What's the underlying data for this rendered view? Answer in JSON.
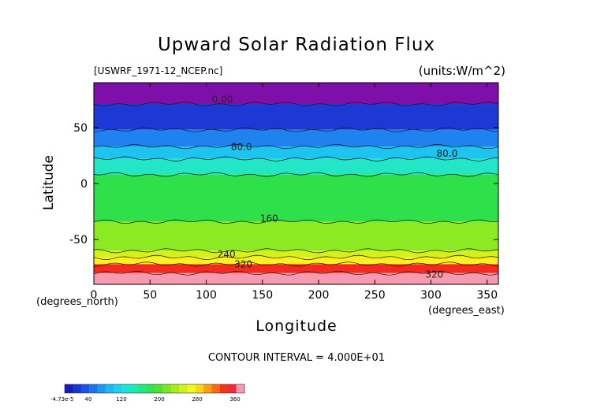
{
  "chart_data": {
    "type": "heatmap",
    "title": "Upward Solar Radiation Flux",
    "source_label": "[USWRF_1971-12_NCEP.nc]",
    "units_label": "(units:W/m^2)",
    "xlabel": "Longitude",
    "ylabel": "Latitude",
    "x_unit_label": "(degrees_east)",
    "y_unit_label": "(degrees_north)",
    "xlim": [
      0,
      360
    ],
    "ylim": [
      -90,
      90
    ],
    "x_ticks": [
      0,
      50,
      100,
      150,
      200,
      250,
      300,
      350
    ],
    "y_ticks": [
      -50,
      0,
      50
    ],
    "contour_interval_text": "CONTOUR INTERVAL = 4.000E+01",
    "contour_labels": [
      {
        "text": "0.00",
        "lon": 105,
        "lat": 72
      },
      {
        "text": "80.0",
        "lon": 122,
        "lat": 30
      },
      {
        "text": "80.0",
        "lon": 305,
        "lat": 24
      },
      {
        "text": "160",
        "lon": 148,
        "lat": -34
      },
      {
        "text": "240",
        "lon": 110,
        "lat": -66
      },
      {
        "text": "320",
        "lon": 125,
        "lat": -75
      },
      {
        "text": "320",
        "lon": 295,
        "lat": -84
      }
    ],
    "bands": [
      {
        "lat_top": 90,
        "lat_bottom": 71,
        "value": 20,
        "color": "#7e0fa8"
      },
      {
        "lat_top": 71,
        "lat_bottom": 48,
        "value": 45,
        "color": "#1e38d6"
      },
      {
        "lat_top": 48,
        "lat_bottom": 33,
        "value": 70,
        "color": "#1f82ee"
      },
      {
        "lat_top": 33,
        "lat_bottom": 22,
        "value": 95,
        "color": "#1ec4f0"
      },
      {
        "lat_top": 22,
        "lat_bottom": 8,
        "value": 120,
        "color": "#22e6c6"
      },
      {
        "lat_top": 8,
        "lat_bottom": -34,
        "value": 170,
        "color": "#2ee04a"
      },
      {
        "lat_top": -34,
        "lat_bottom": -60,
        "value": 205,
        "color": "#8cea22"
      },
      {
        "lat_top": -60,
        "lat_bottom": -66,
        "value": 250,
        "color": "#d8f01a"
      },
      {
        "lat_top": -66,
        "lat_bottom": -72,
        "value": 290,
        "color": "#fff020"
      },
      {
        "lat_top": -72,
        "lat_bottom": -80,
        "value": 325,
        "color": "#f52a1e"
      },
      {
        "lat_top": -80,
        "lat_bottom": -90,
        "value": 365,
        "color": "#f79ab0"
      }
    ],
    "colorbar": {
      "tick_labels": [
        "-4.73e-5",
        "40",
        "120",
        "200",
        "280",
        "360"
      ],
      "tick_values": [
        0,
        40,
        120,
        200,
        280,
        360
      ],
      "range": [
        0,
        380
      ],
      "colors": [
        "#1a1ab4",
        "#1638d0",
        "#1854e0",
        "#1a74ea",
        "#1a98f2",
        "#1ab8f4",
        "#1ad2ee",
        "#18e6d4",
        "#18ecae",
        "#1ee884",
        "#2ce456",
        "#4ce22e",
        "#7ae81e",
        "#a6ee18",
        "#d0f41a",
        "#f4f81e",
        "#fcd814",
        "#fca010",
        "#fa6a12",
        "#f5341c",
        "#f02a3a",
        "#f79ab0"
      ]
    }
  }
}
